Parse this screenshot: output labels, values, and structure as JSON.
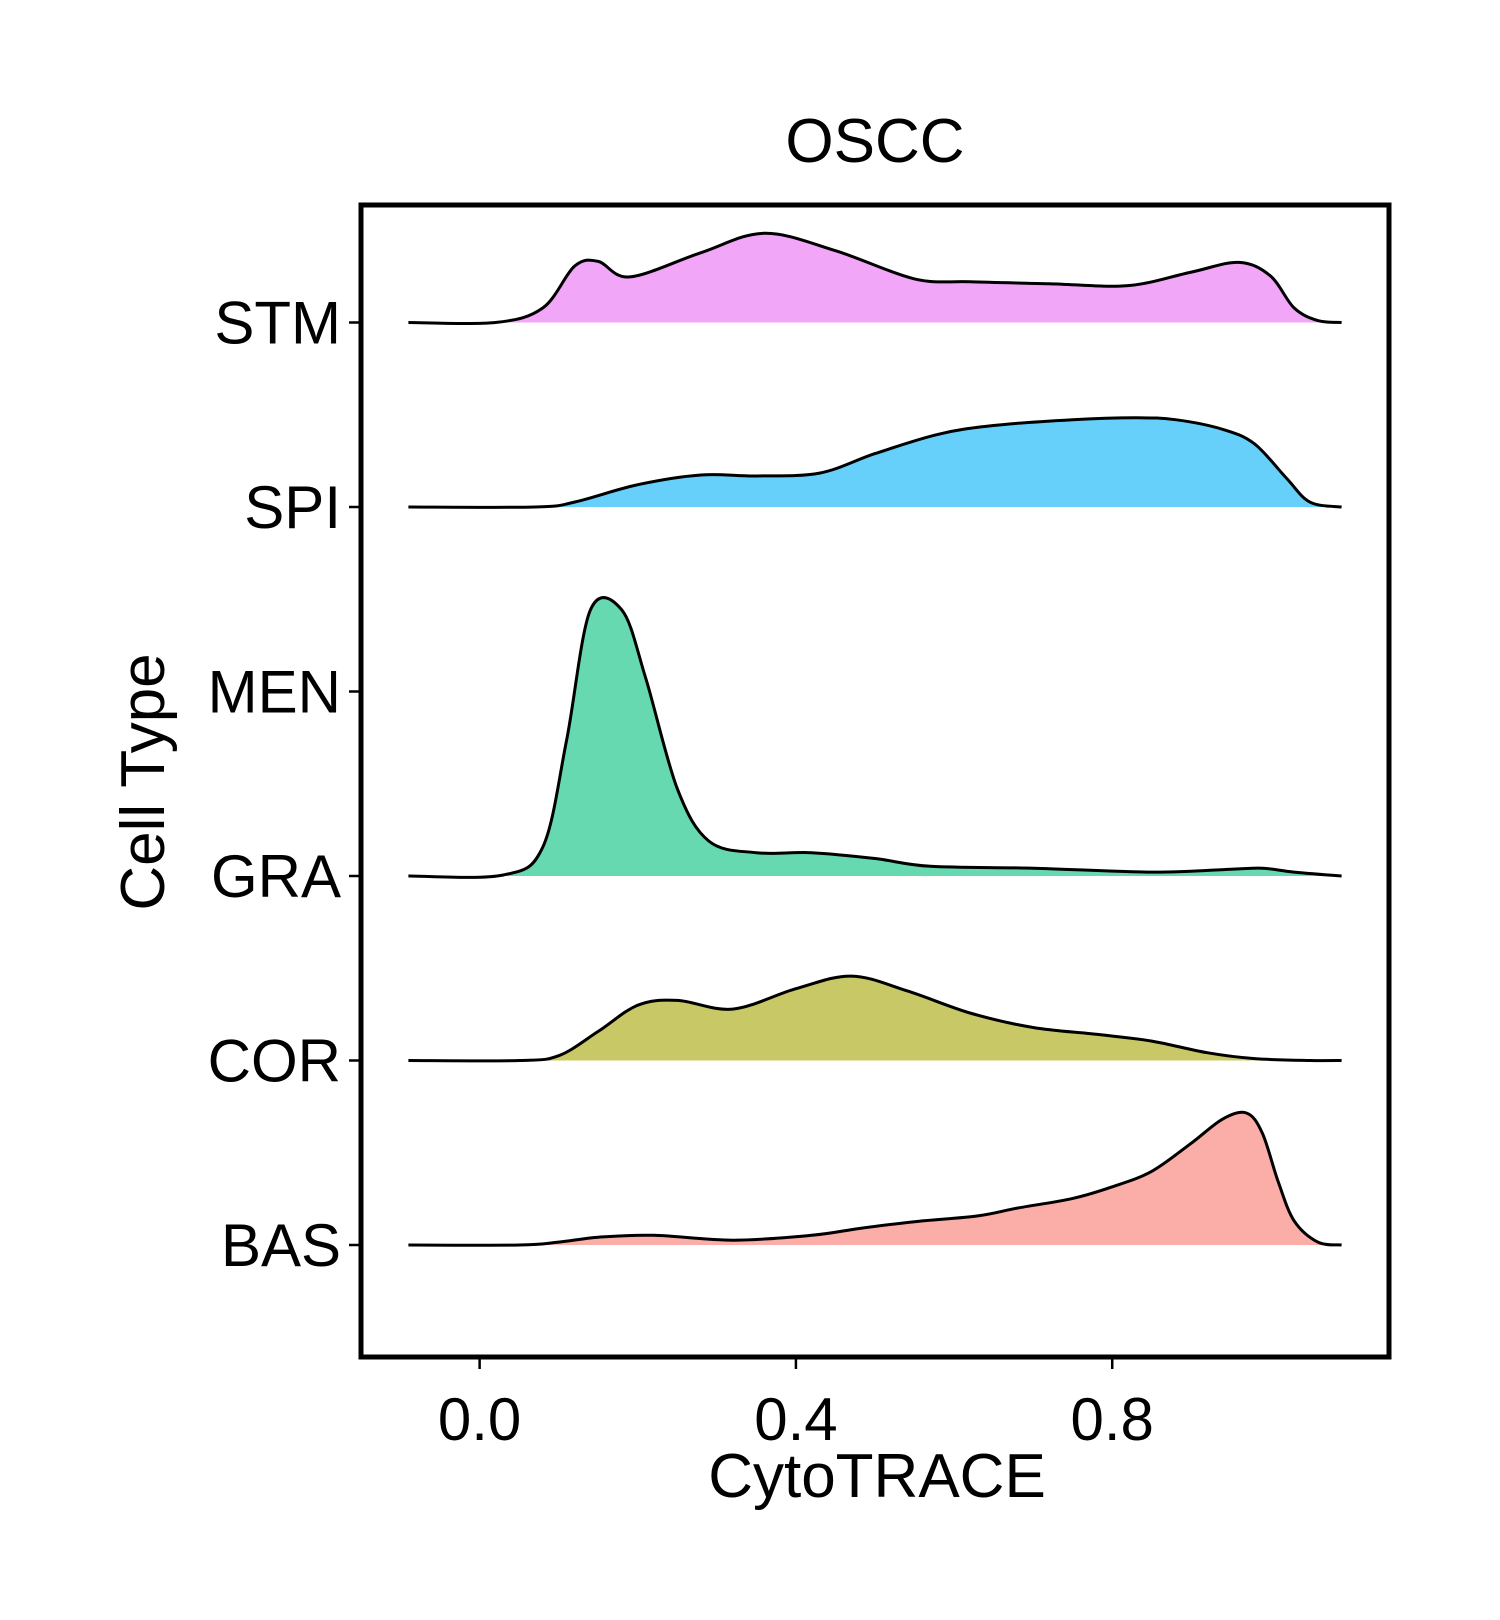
{
  "chart_data": {
    "type": "ridgeline",
    "title": "OSCC",
    "xlabel": "CytoTRACE",
    "ylabel": "Cell Type",
    "xlim": [
      -0.15,
      1.15
    ],
    "x_ticks": [
      0.0,
      0.4,
      0.8
    ],
    "x_tick_labels": [
      "0.0",
      "0.4",
      "0.8"
    ],
    "categories": [
      "BAS",
      "COR",
      "GRA",
      "MEN",
      "SPI",
      "STM"
    ],
    "density_x_range": [
      -0.09,
      1.09
    ],
    "series": [
      {
        "name": "BAS",
        "color": "#F8766D",
        "points": [
          [
            -0.09,
            0.0
          ],
          [
            0.05,
            0.0
          ],
          [
            0.1,
            0.03
          ],
          [
            0.15,
            0.08
          ],
          [
            0.22,
            0.1
          ],
          [
            0.32,
            0.05
          ],
          [
            0.42,
            0.1
          ],
          [
            0.48,
            0.17
          ],
          [
            0.55,
            0.24
          ],
          [
            0.63,
            0.3
          ],
          [
            0.68,
            0.38
          ],
          [
            0.75,
            0.48
          ],
          [
            0.8,
            0.6
          ],
          [
            0.85,
            0.76
          ],
          [
            0.9,
            1.05
          ],
          [
            0.94,
            1.3
          ],
          [
            0.97,
            1.36
          ],
          [
            0.99,
            1.15
          ],
          [
            1.01,
            0.65
          ],
          [
            1.03,
            0.25
          ],
          [
            1.06,
            0.03
          ],
          [
            1.09,
            0.0
          ]
        ]
      },
      {
        "name": "COR",
        "color": "#A3A500",
        "points": [
          [
            -0.09,
            0.0
          ],
          [
            0.05,
            0.0
          ],
          [
            0.1,
            0.05
          ],
          [
            0.15,
            0.3
          ],
          [
            0.2,
            0.57
          ],
          [
            0.25,
            0.62
          ],
          [
            0.32,
            0.53
          ],
          [
            0.4,
            0.74
          ],
          [
            0.47,
            0.87
          ],
          [
            0.54,
            0.72
          ],
          [
            0.62,
            0.49
          ],
          [
            0.7,
            0.34
          ],
          [
            0.78,
            0.27
          ],
          [
            0.85,
            0.2
          ],
          [
            0.92,
            0.08
          ],
          [
            0.98,
            0.02
          ],
          [
            1.05,
            0.0
          ],
          [
            1.09,
            0.0
          ]
        ]
      },
      {
        "name": "GRA",
        "color": "#00BF7D",
        "points": [
          [
            -0.09,
            0.0
          ],
          [
            0.03,
            0.01
          ],
          [
            0.08,
            0.3
          ],
          [
            0.11,
            1.4
          ],
          [
            0.14,
            2.74
          ],
          [
            0.18,
            2.74
          ],
          [
            0.21,
            2.04
          ],
          [
            0.25,
            0.9
          ],
          [
            0.29,
            0.36
          ],
          [
            0.35,
            0.24
          ],
          [
            0.42,
            0.24
          ],
          [
            0.5,
            0.18
          ],
          [
            0.57,
            0.1
          ],
          [
            0.7,
            0.08
          ],
          [
            0.85,
            0.04
          ],
          [
            0.95,
            0.07
          ],
          [
            0.99,
            0.08
          ],
          [
            1.03,
            0.04
          ],
          [
            1.09,
            0.0
          ]
        ]
      },
      {
        "name": "SPI",
        "color": "#00B0F6",
        "points": [
          [
            -0.09,
            0.0
          ],
          [
            0.07,
            0.0
          ],
          [
            0.12,
            0.05
          ],
          [
            0.2,
            0.23
          ],
          [
            0.28,
            0.33
          ],
          [
            0.35,
            0.32
          ],
          [
            0.43,
            0.35
          ],
          [
            0.5,
            0.55
          ],
          [
            0.58,
            0.75
          ],
          [
            0.65,
            0.84
          ],
          [
            0.75,
            0.9
          ],
          [
            0.83,
            0.92
          ],
          [
            0.88,
            0.9
          ],
          [
            0.94,
            0.8
          ],
          [
            0.98,
            0.65
          ],
          [
            1.02,
            0.3
          ],
          [
            1.05,
            0.05
          ],
          [
            1.09,
            0.0
          ]
        ]
      },
      {
        "name": "STM",
        "color": "#E76BF3",
        "points": [
          [
            -0.09,
            0.0
          ],
          [
            0.02,
            0.0
          ],
          [
            0.08,
            0.15
          ],
          [
            0.12,
            0.58
          ],
          [
            0.15,
            0.63
          ],
          [
            0.19,
            0.47
          ],
          [
            0.28,
            0.72
          ],
          [
            0.36,
            0.92
          ],
          [
            0.45,
            0.74
          ],
          [
            0.55,
            0.45
          ],
          [
            0.62,
            0.42
          ],
          [
            0.72,
            0.4
          ],
          [
            0.82,
            0.38
          ],
          [
            0.9,
            0.52
          ],
          [
            0.96,
            0.62
          ],
          [
            1.0,
            0.48
          ],
          [
            1.03,
            0.15
          ],
          [
            1.06,
            0.02
          ],
          [
            1.09,
            0.0
          ]
        ]
      }
    ]
  }
}
